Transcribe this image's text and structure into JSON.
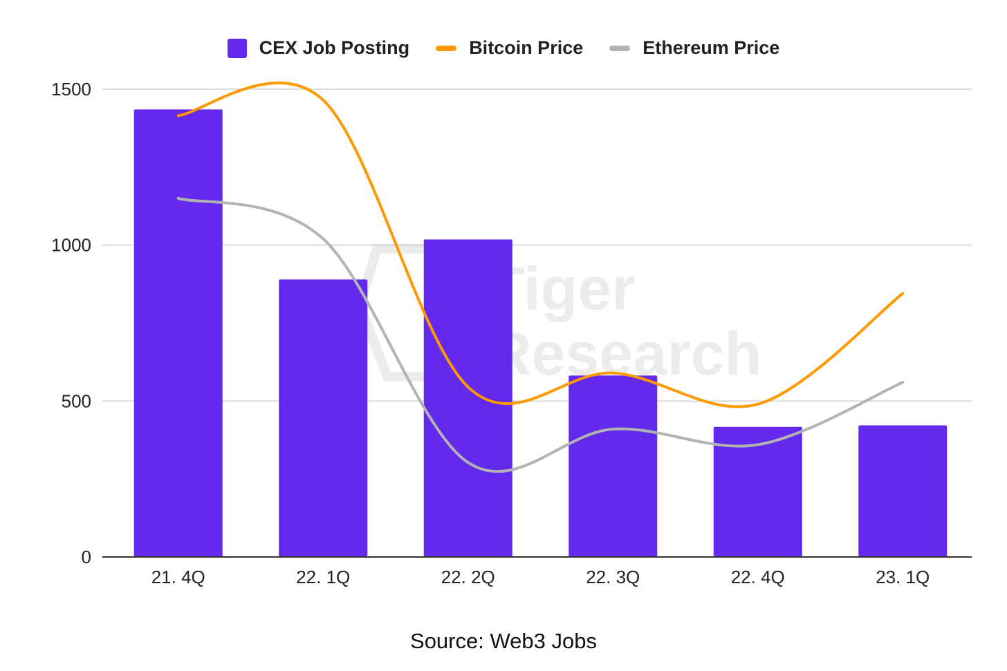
{
  "chart_data": {
    "type": "bar",
    "categories": [
      "21. 4Q",
      "22. 1Q",
      "22. 2Q",
      "22. 3Q",
      "22. 4Q",
      "23. 1Q"
    ],
    "series": [
      {
        "name": "CEX Job Posting",
        "kind": "bar",
        "color": "#6329ec",
        "values": [
          1435,
          890,
          1018,
          582,
          417,
          422
        ]
      },
      {
        "name": "Bitcoin Price",
        "kind": "line",
        "color": "#ff9900",
        "values": [
          1415,
          1465,
          545,
          590,
          490,
          845
        ]
      },
      {
        "name": "Ethereum Price",
        "kind": "line",
        "color": "#b3b3b3",
        "values": [
          1150,
          1020,
          303,
          410,
          360,
          560
        ]
      }
    ],
    "y_ticks": [
      0,
      500,
      1000,
      1500
    ],
    "ylim": [
      0,
      1500
    ],
    "legend_position": "top-center",
    "grid": true,
    "source": "Source: Web3 Jobs",
    "watermark": "Tiger Research"
  }
}
